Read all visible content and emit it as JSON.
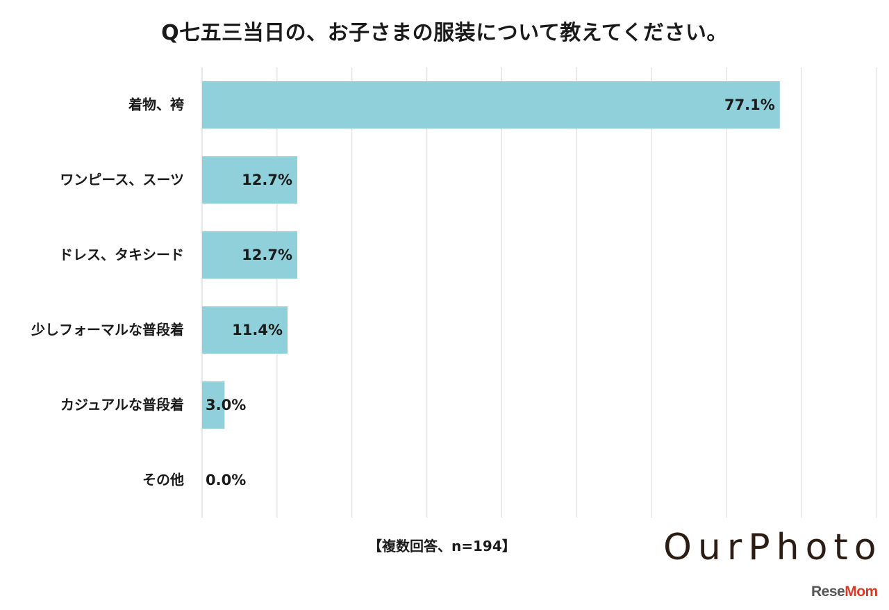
{
  "chart_data": {
    "type": "bar",
    "orientation": "horizontal",
    "title": "Q七五三当日の、お子さまの服装について教えてください。",
    "categories": [
      "着物、袴",
      "ワンピース、スーツ",
      "ドレス、タキシード",
      "少しフォーマルな普段着",
      "カジュアルな普段着",
      "その他"
    ],
    "series": [
      {
        "values": [
          77.1,
          12.7,
          12.7,
          11.4,
          3.0,
          0.0
        ],
        "labels": [
          "77.1%",
          "12.7%",
          "12.7%",
          "11.4%",
          "3.0%",
          "0.0%"
        ]
      }
    ],
    "xlim": [
      0,
      90
    ],
    "grid": true,
    "bar_color": "#8fd0db",
    "note": "【複数回答、n=194】"
  },
  "branding": {
    "ourphoto": "OurPhoto",
    "resemom_before": "Rese",
    "resemom_o": "Mom"
  }
}
